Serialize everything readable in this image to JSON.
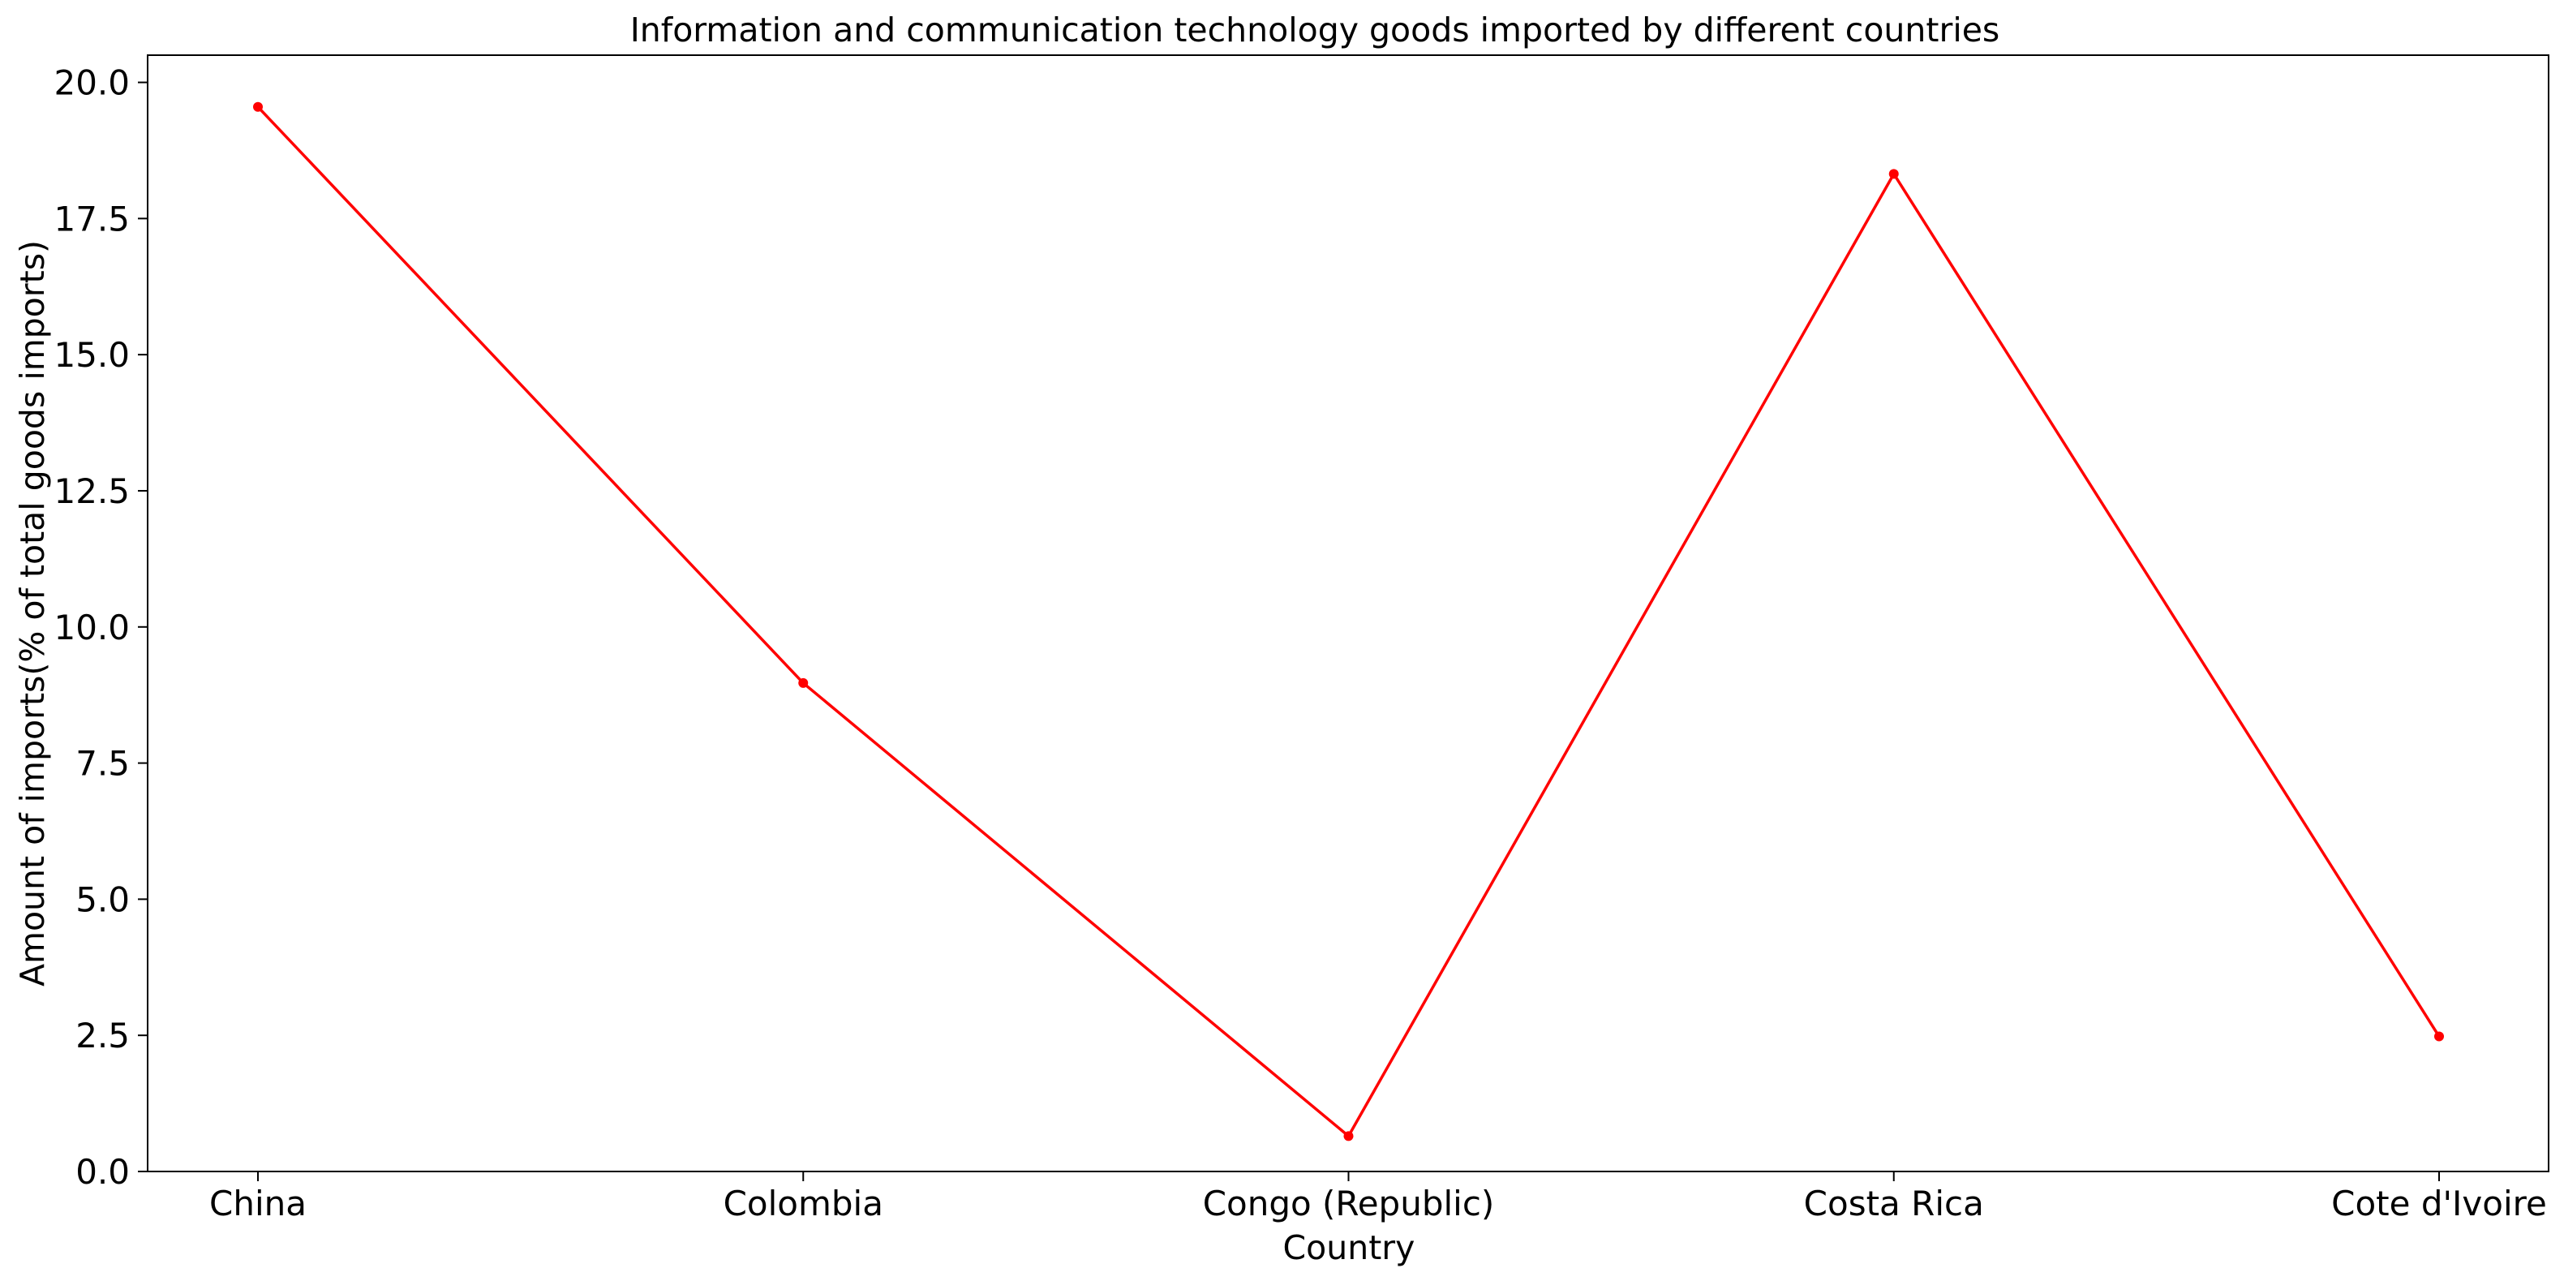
{
  "chart_data": {
    "type": "line",
    "title": "Information and communication technology goods imported by different countries",
    "xlabel": "Country",
    "ylabel": "Amount of imports(% of total goods imports)",
    "categories": [
      "China",
      "Colombia",
      "Congo (Republic)",
      "Costa Rica",
      "Cote d'Ivoire"
    ],
    "series": [
      {
        "values": [
          19.55,
          8.97,
          0.65,
          18.32,
          2.48
        ],
        "color": "#ff0000",
        "marker": "circle"
      }
    ],
    "ylim": [
      0,
      20.5
    ],
    "yticks": [
      0.0,
      2.5,
      5.0,
      7.5,
      10.0,
      12.5,
      15.0,
      17.5,
      20.0
    ],
    "ytick_labels": [
      "0.0",
      "2.5",
      "5.0",
      "7.5",
      "10.0",
      "12.5",
      "15.0",
      "17.5",
      "20.0"
    ],
    "grid": false,
    "legend": "none"
  }
}
